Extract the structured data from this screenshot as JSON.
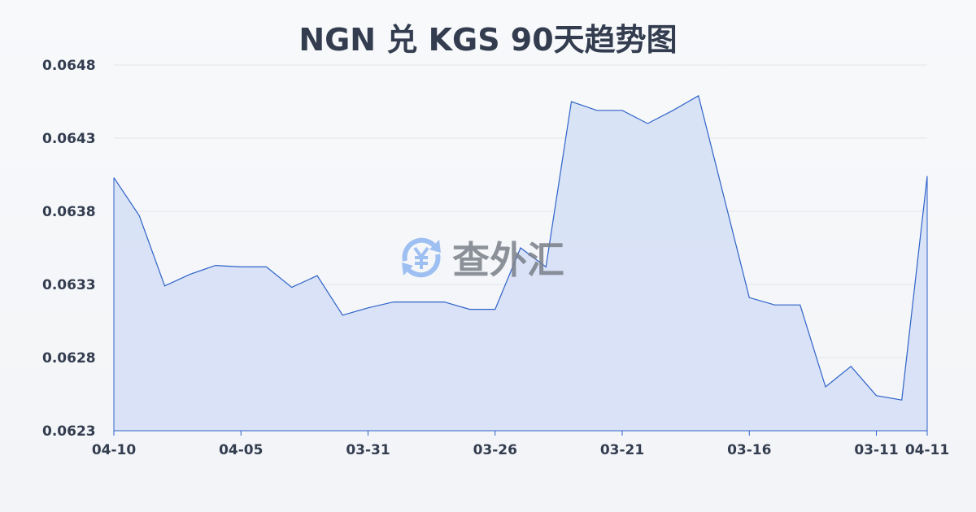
{
  "chart_data": {
    "type": "area",
    "title": "NGN 兑 KGS 90天趋势图",
    "xlabel": "",
    "ylabel": "",
    "x": [
      "04-10",
      "04-09",
      "04-08",
      "04-07",
      "04-06",
      "04-05",
      "04-04",
      "04-03",
      "04-02",
      "04-01",
      "03-31",
      "03-30",
      "03-29",
      "03-28",
      "03-27",
      "03-26",
      "03-25",
      "03-24",
      "03-23",
      "03-22",
      "03-21",
      "03-20",
      "03-19",
      "03-18",
      "03-17",
      "03-16",
      "03-15",
      "03-14",
      "03-13",
      "03-12",
      "03-11",
      "03-10",
      "04-11"
    ],
    "values": [
      0.06403,
      0.06377,
      0.06329,
      0.06337,
      0.06343,
      0.06342,
      0.06342,
      0.06328,
      0.06336,
      0.06309,
      0.06314,
      0.06318,
      0.06318,
      0.06318,
      0.06313,
      0.06313,
      0.06355,
      0.06342,
      0.06455,
      0.06449,
      0.06449,
      0.0644,
      0.06449,
      0.06459,
      0.0639,
      0.06321,
      0.06316,
      0.06316,
      0.0626,
      0.06274,
      0.06254,
      0.06251,
      0.06404
    ],
    "x_tick_labels": [
      "04-10",
      "04-05",
      "03-31",
      "03-26",
      "03-21",
      "03-16",
      "03-11",
      "04-11"
    ],
    "y_tick_labels": [
      "0.0648",
      "0.0643",
      "0.0638",
      "0.0633",
      "0.0628",
      "0.0623"
    ],
    "ylim": [
      0.0623,
      0.0648
    ],
    "grid": true,
    "colors": {
      "line": "#2f62c9",
      "fill": "#d6e0f5",
      "text": "#333d4f"
    }
  },
  "watermark": {
    "text": "查外汇",
    "icon": "yen-exchange-icon"
  }
}
